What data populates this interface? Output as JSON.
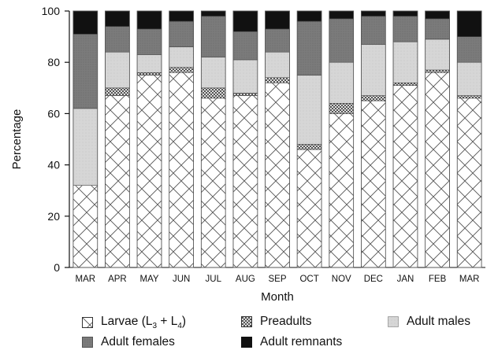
{
  "chart_data": {
    "type": "bar",
    "stacked": true,
    "categories": [
      "MAR",
      "APR",
      "MAY",
      "JUN",
      "JUL",
      "AUG",
      "SEP",
      "OCT",
      "NOV",
      "DEC",
      "JAN",
      "FEB",
      "MAR"
    ],
    "series": [
      {
        "name": "Larvae (L3 + L4)",
        "pattern": "crosshatch-light",
        "values": [
          32,
          67,
          75,
          76,
          66,
          67,
          72,
          46,
          60,
          65,
          71,
          76,
          66
        ]
      },
      {
        "name": "Preadults",
        "pattern": "crosshatch-dense",
        "values": [
          0,
          3,
          1,
          2,
          4,
          1,
          2,
          2,
          4,
          2,
          1,
          1,
          1
        ]
      },
      {
        "name": "Adult males",
        "pattern": "dotted-light",
        "values": [
          30,
          14,
          7,
          8,
          12,
          13,
          10,
          27,
          16,
          20,
          16,
          12,
          13
        ]
      },
      {
        "name": "Adult females",
        "pattern": "stipple-gray",
        "values": [
          29,
          10,
          10,
          10,
          16,
          11,
          9,
          21,
          17,
          11,
          10,
          8,
          10
        ]
      },
      {
        "name": "Adult remnants",
        "pattern": "solid-black",
        "values": [
          9,
          6,
          7,
          4,
          2,
          8,
          7,
          4,
          3,
          2,
          2,
          3,
          10
        ]
      }
    ],
    "xlabel": "Month",
    "ylabel": "Percentage",
    "ylim": [
      0,
      100
    ],
    "yticks": [
      0,
      20,
      40,
      60,
      80,
      100
    ],
    "grid": false,
    "legend_placement": "bottom",
    "colors": {
      "females": "#7a7a7a",
      "remnants": "#101010",
      "males": "#d0d0d0",
      "larvae_line": "#5a5a5a"
    }
  },
  "legend": {
    "larvae_main": "Larvae (L",
    "larvae_sub1": "3",
    "larvae_plus": " + L",
    "larvae_sub2": "4",
    "larvae_close": ")",
    "preadults": "Preadults",
    "males": "Adult males",
    "females": "Adult females",
    "remnants": "Adult remnants"
  }
}
